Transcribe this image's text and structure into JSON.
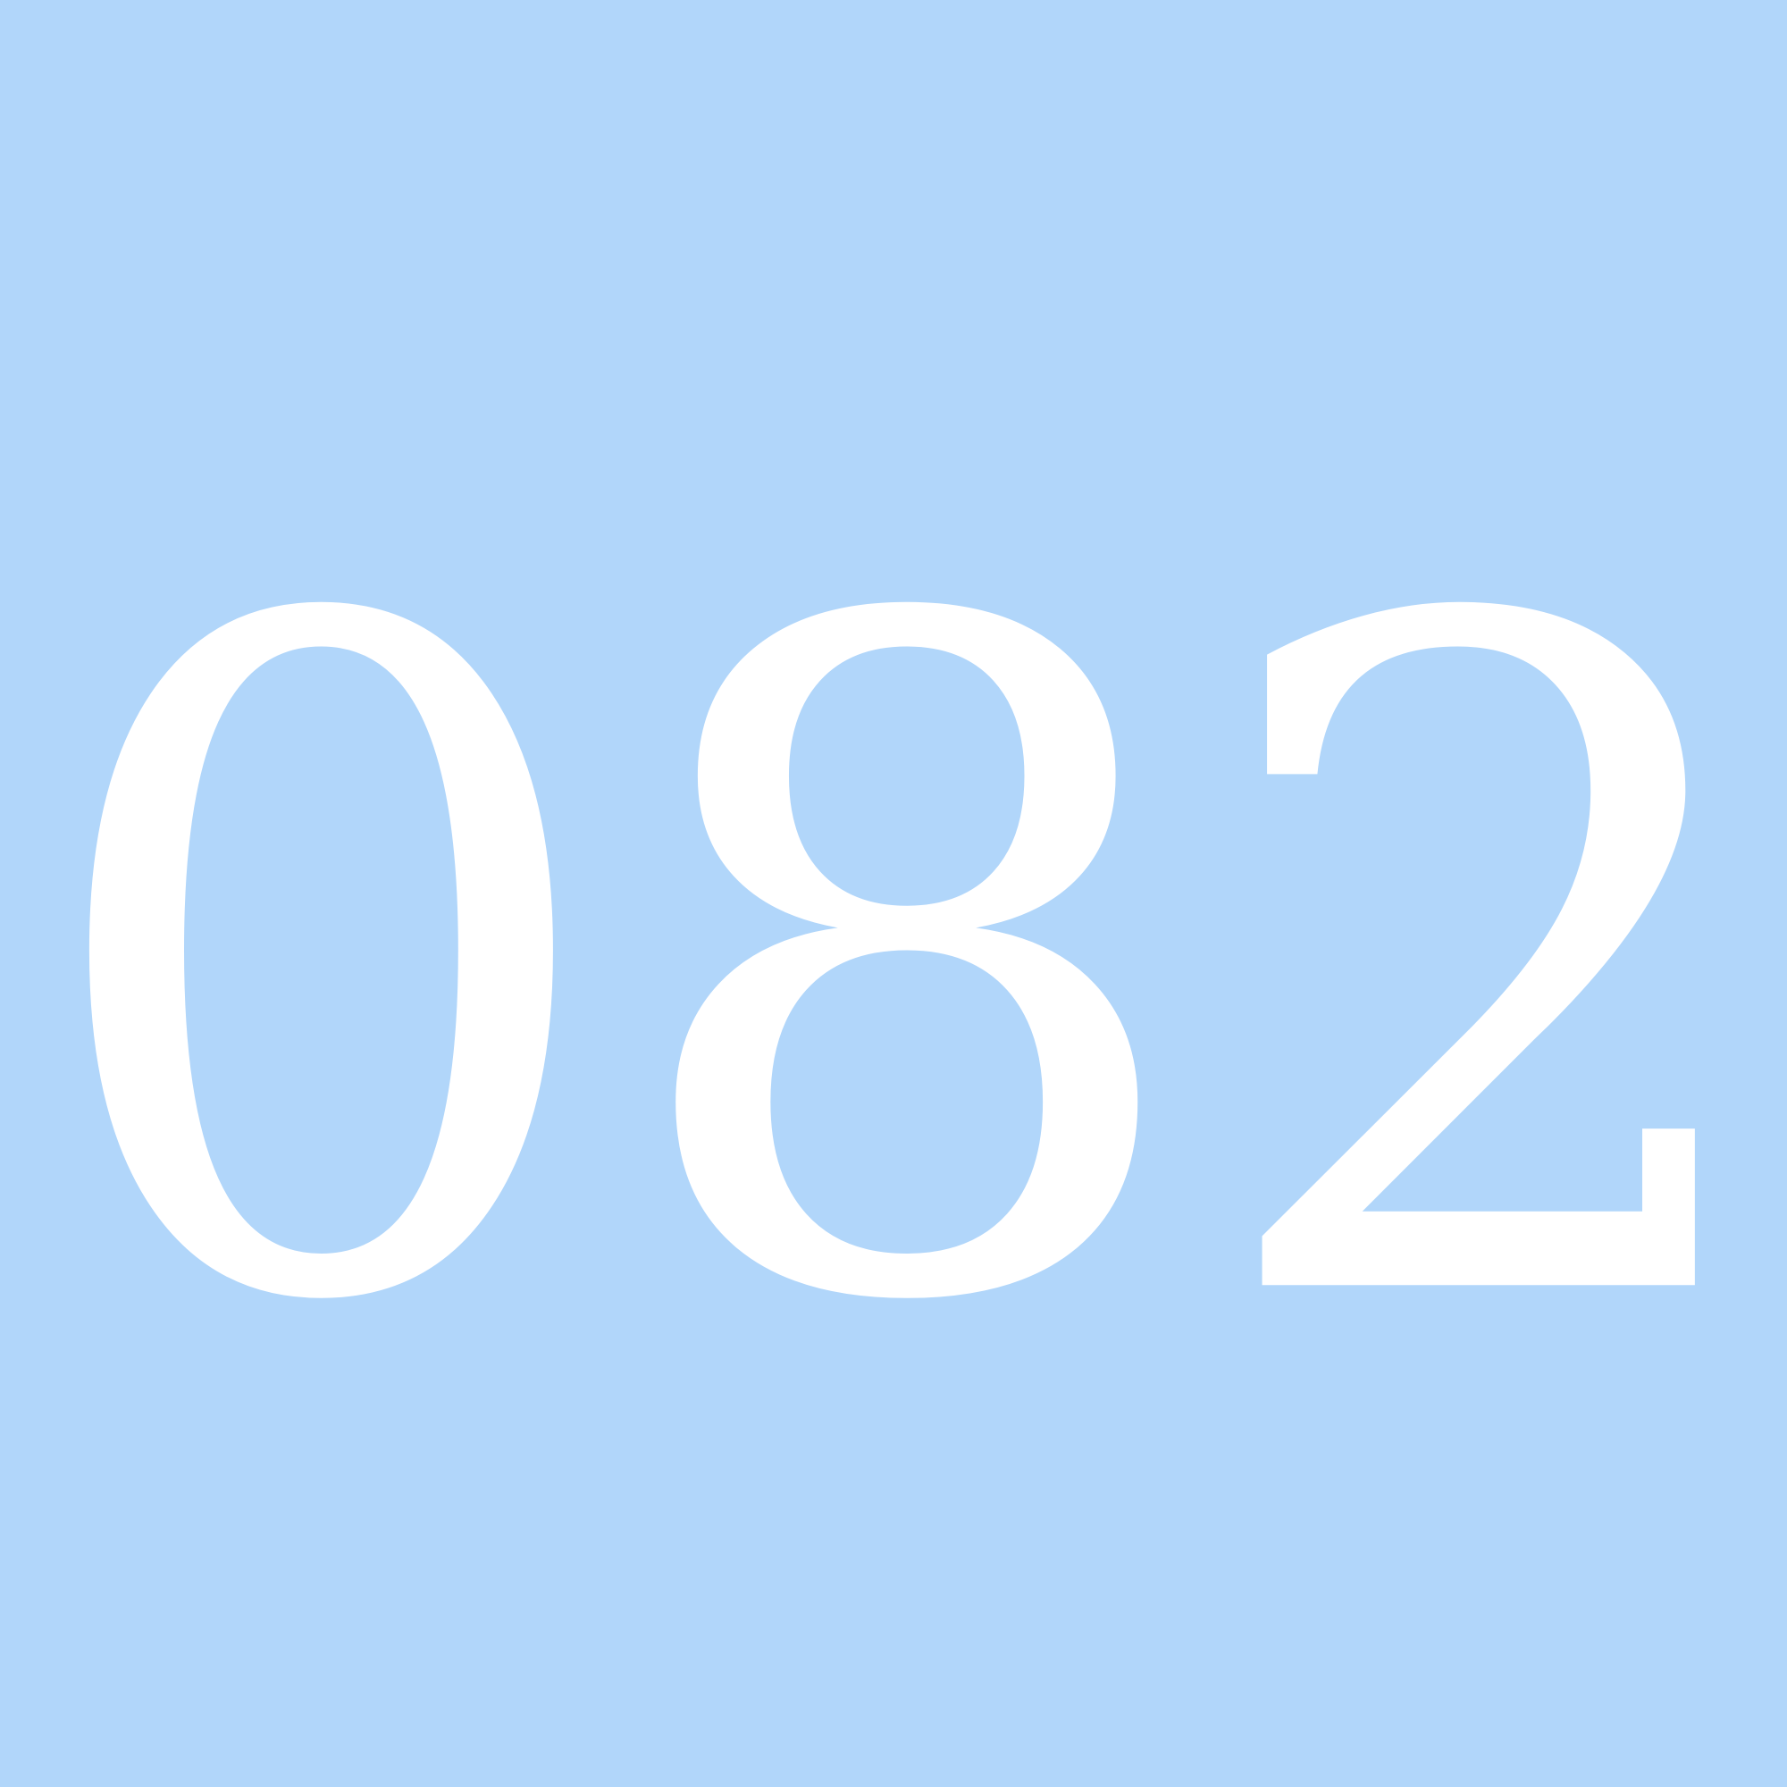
{
  "display": {
    "number": "082"
  },
  "colors": {
    "background": "#b1d6fa",
    "text": "#ffffff"
  }
}
